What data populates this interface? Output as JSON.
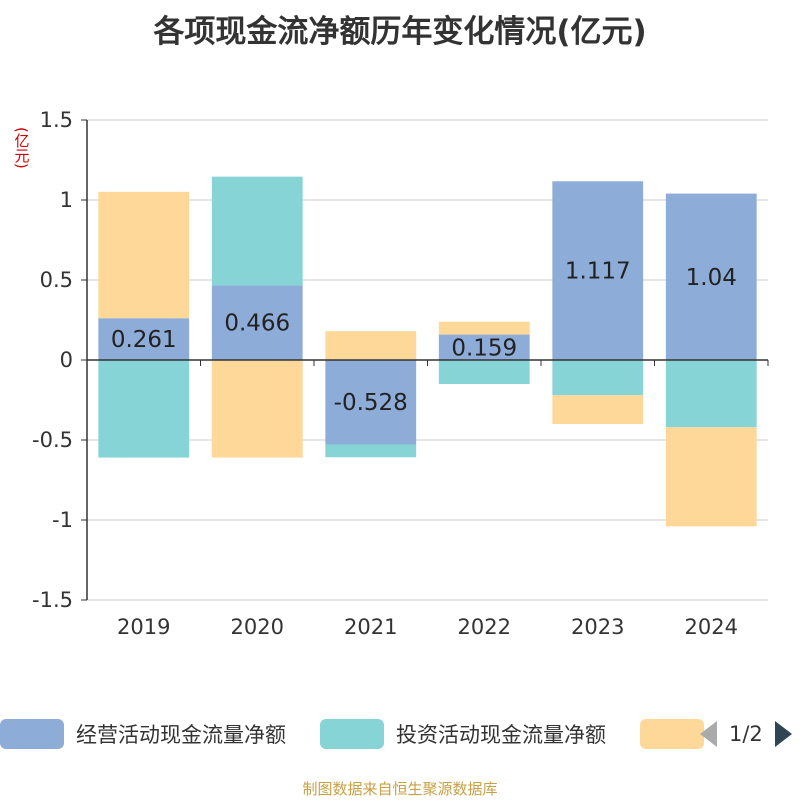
{
  "title": "各项现金流净额历年变化情况(亿元)",
  "unit_label": "(亿元)",
  "source": "制图数据来自恒生聚源数据库",
  "legend": {
    "items": [
      {
        "label": "经营活动现金流量净额",
        "color": "#8eacd8"
      },
      {
        "label": "投资活动现金流量净额",
        "color": "#86d4d6"
      },
      {
        "label": "",
        "color": "#fed898"
      }
    ],
    "page": "1/2"
  },
  "chart_data": {
    "type": "bar",
    "stacked": true,
    "categories": [
      "2019",
      "2020",
      "2021",
      "2022",
      "2023",
      "2024"
    ],
    "ylim": [
      -1.5,
      1.5
    ],
    "yticks": [
      -1.5,
      -1,
      -0.5,
      0,
      0.5,
      1,
      1.5
    ],
    "ytick_labels": [
      "-1.5",
      "-1",
      "-0.5",
      "0",
      "0.5",
      "1",
      "1.5"
    ],
    "grid": true,
    "series": [
      {
        "name": "经营活动现金流量净额",
        "color": "#8eacd8",
        "values": [
          0.261,
          0.466,
          -0.528,
          0.159,
          1.117,
          1.04
        ],
        "labels": [
          "0.261",
          "0.466",
          "-0.528",
          "0.159",
          "1.117",
          "1.04"
        ]
      },
      {
        "name": "投资活动现金流量净额",
        "color": "#86d4d6",
        "values": [
          -0.61,
          0.68,
          -0.08,
          -0.15,
          -0.22,
          -0.42
        ]
      },
      {
        "name": "",
        "color": "#fed898",
        "values": [
          0.79,
          -0.61,
          0.18,
          0.08,
          -0.18,
          -0.62
        ]
      }
    ]
  }
}
